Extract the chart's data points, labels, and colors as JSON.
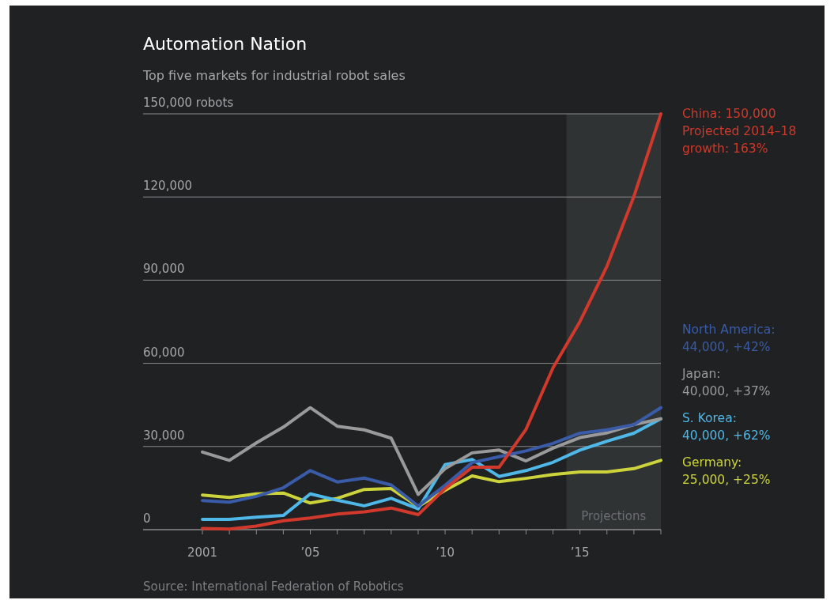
{
  "chart_data": {
    "type": "line",
    "title": "Automation Nation",
    "subtitle": "Top five markets for industrial robot sales",
    "x": [
      2001,
      2002,
      2003,
      2004,
      2005,
      2006,
      2007,
      2008,
      2009,
      2010,
      2011,
      2012,
      2013,
      2014,
      2015,
      2016,
      2017,
      2018
    ],
    "series": [
      {
        "name": "China:",
        "color": "#d0392b",
        "values": [
          400,
          200,
          1300,
          3200,
          4200,
          5600,
          6400,
          7800,
          5400,
          14800,
          22500,
          22500,
          36200,
          58400,
          75100,
          95000,
          120200,
          150000
        ]
      },
      {
        "name": "North America:",
        "color": "#3a5ba8",
        "values": [
          10500,
          9900,
          12000,
          15100,
          21300,
          17200,
          18600,
          16100,
          8500,
          16000,
          24200,
          26300,
          28400,
          31100,
          34800,
          36000,
          37900,
          44000
        ]
      },
      {
        "name": "Japan:",
        "color": "#9a9a9a",
        "values": [
          28000,
          25000,
          31300,
          37000,
          44000,
          37300,
          36000,
          33000,
          12700,
          22000,
          27700,
          28700,
          24800,
          29400,
          33200,
          34900,
          37900,
          40000
        ]
      },
      {
        "name": "S. Korea:",
        "color": "#4fb8e8",
        "values": [
          3700,
          3700,
          4500,
          5100,
          12900,
          10600,
          8600,
          11300,
          7500,
          23500,
          25300,
          19200,
          21300,
          24300,
          28700,
          31900,
          34800,
          40000
        ]
      },
      {
        "name": "Germany:",
        "color": "#cdd33a",
        "values": [
          12500,
          11600,
          12900,
          13200,
          9600,
          11300,
          14500,
          14800,
          8300,
          14200,
          19400,
          17300,
          18500,
          19900,
          20800,
          20800,
          22000,
          25000
        ]
      }
    ],
    "xlim": [
      1998.8,
      2018
    ],
    "xticks": [
      {
        "value": 2001,
        "label": "2001"
      },
      {
        "value": 2002,
        "label": null
      },
      {
        "value": 2003,
        "label": null
      },
      {
        "value": 2004,
        "label": null
      },
      {
        "value": 2005,
        "label": "’05"
      },
      {
        "value": 2006,
        "label": null
      },
      {
        "value": 2007,
        "label": null
      },
      {
        "value": 2008,
        "label": null
      },
      {
        "value": 2009,
        "label": null
      },
      {
        "value": 2010,
        "label": "’10"
      },
      {
        "value": 2011,
        "label": null
      },
      {
        "value": 2012,
        "label": null
      },
      {
        "value": 2013,
        "label": null
      },
      {
        "value": 2014,
        "label": null
      },
      {
        "value": 2015,
        "label": "’15"
      },
      {
        "value": 2016,
        "label": null
      },
      {
        "value": 2017,
        "label": null
      },
      {
        "value": 2018,
        "label": null
      }
    ],
    "ylim": [
      0,
      150000
    ],
    "yticks": [
      0,
      {
        "value": 30000,
        "label": "30,000"
      },
      {
        "value": 60000,
        "label": "60,000"
      },
      {
        "value": 90000,
        "label": "90,000"
      },
      {
        "value": 120000,
        "label": "120,000"
      },
      {
        "value": 150000,
        "label": "150,000 robots"
      }
    ],
    "grid": "y",
    "legend": false,
    "bands": [
      {
        "axis": "x",
        "from": 2014.5,
        "to": 2018,
        "label": "Projections",
        "color": "#303334"
      }
    ],
    "annotations": [
      "150,000\nProjected 2014–18\ngrowth: 163%",
      "44,000, +42%",
      "40,000, +37%",
      "40,000, +62%",
      "25,000, +25%",
      "Source: International Federation of Robotics"
    ]
  }
}
